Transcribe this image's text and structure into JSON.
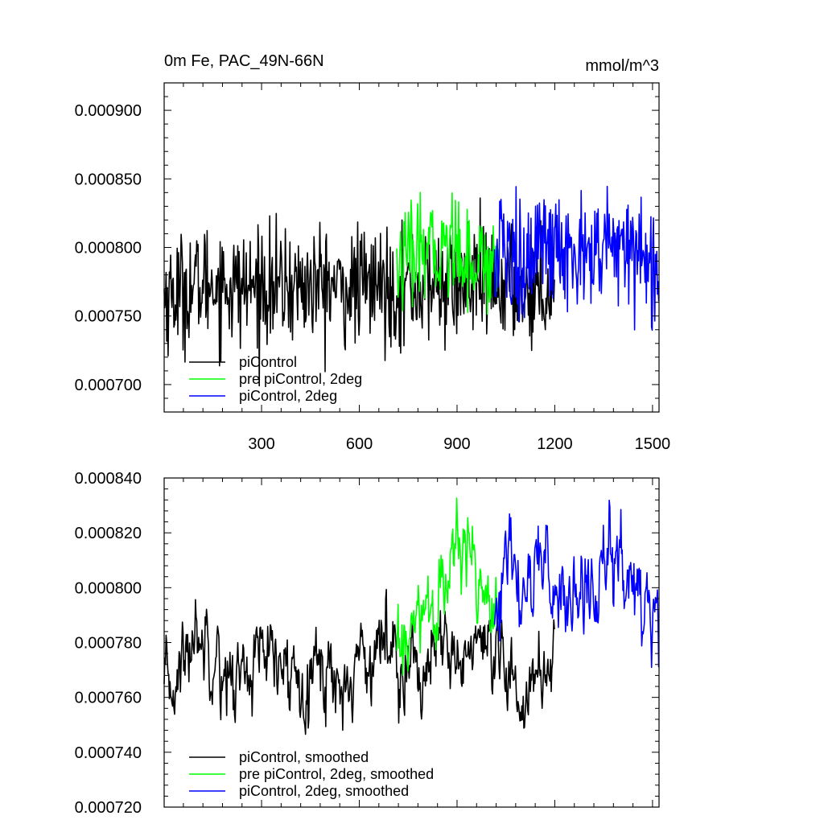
{
  "figure": {
    "title_left": "0m Fe, PAC_49N-66N",
    "title_right": "mmol/m^3"
  },
  "chart_data": [
    {
      "type": "line",
      "title": "0m Fe, PAC_49N-66N",
      "units": "mmol/m^3",
      "xlabel": "",
      "ylabel": "",
      "xlim": [
        1,
        1520
      ],
      "ylim": [
        0.00068,
        0.00092
      ],
      "xticks": [
        300,
        600,
        900,
        1200,
        1500
      ],
      "xtick_labels": [
        "300",
        "600",
        "900",
        "1200",
        "1500"
      ],
      "yticks": [
        0.0007,
        0.00075,
        0.0008,
        0.00085,
        0.0009
      ],
      "ytick_labels": [
        "0.000700",
        "0.000750",
        "0.000800",
        "0.000850",
        "0.000900"
      ],
      "grid": false,
      "legend_position": "bottom-left",
      "series": [
        {
          "name": "piControl",
          "color": "#000000",
          "x": [
            1,
            50,
            100,
            150,
            200,
            250,
            300,
            350,
            400,
            450,
            500,
            550,
            600,
            650,
            700,
            750,
            800,
            850,
            900,
            950,
            1000,
            1050,
            1100,
            1150,
            1200
          ],
          "y": [
            0.000765,
            0.000768,
            0.000772,
            0.000775,
            0.000772,
            0.00077,
            0.000773,
            0.00077,
            0.000772,
            0.000771,
            0.000774,
            0.000768,
            0.000772,
            0.000773,
            0.00077,
            0.000772,
            0.00077,
            0.000774,
            0.000771,
            0.000776,
            0.00077,
            0.000774,
            0.000768,
            0.000771,
            0.000773
          ]
        },
        {
          "name": "pre piControl, 2deg",
          "color": "#00ff00",
          "x": [
            715,
            750,
            800,
            850,
            900,
            950,
            1000,
            1030
          ],
          "y": [
            0.000785,
            0.000792,
            0.000795,
            0.0008,
            0.000802,
            0.00079,
            0.000788,
            0.000795
          ]
        },
        {
          "name": "piControl, 2deg",
          "color": "#0000ff",
          "x": [
            1015,
            1050,
            1100,
            1150,
            1200,
            1250,
            1300,
            1350,
            1400,
            1450,
            1500,
            1520
          ],
          "y": [
            0.00079,
            0.000795,
            0.000792,
            0.000798,
            0.000794,
            0.000796,
            0.000793,
            0.000797,
            0.0008,
            0.000795,
            0.00079,
            0.000785
          ]
        }
      ]
    },
    {
      "type": "line",
      "title": "",
      "xlabel": "",
      "ylabel": "",
      "xlim": [
        1,
        1520
      ],
      "ylim": [
        0.00072,
        0.00084
      ],
      "xticks": [
        300,
        600,
        900,
        1200,
        1500
      ],
      "yticks": [
        0.00072,
        0.00074,
        0.00076,
        0.00078,
        0.0008,
        0.00082,
        0.00084
      ],
      "ytick_labels": [
        "0.000720",
        "0.000740",
        "0.000760",
        "0.000780",
        "0.000800",
        "0.000820",
        "0.000840"
      ],
      "grid": false,
      "legend_position": "bottom-left",
      "series": [
        {
          "name": "piControl, smoothed",
          "color": "#000000",
          "x": [
            1,
            50,
            100,
            150,
            200,
            250,
            300,
            350,
            400,
            450,
            500,
            550,
            600,
            650,
            700,
            750,
            800,
            850,
            900,
            950,
            1000,
            1050,
            1100,
            1150,
            1200
          ],
          "y": [
            0.00076,
            0.00077,
            0.000785,
            0.00078,
            0.000765,
            0.00077,
            0.000775,
            0.00077,
            0.000768,
            0.000772,
            0.00077,
            0.000762,
            0.000775,
            0.000778,
            0.00078,
            0.000772,
            0.00077,
            0.000776,
            0.000772,
            0.00078,
            0.00077,
            0.000768,
            0.00076,
            0.000768,
            0.000778
          ]
        },
        {
          "name": "pre piControl, 2deg, smoothed",
          "color": "#00ff00",
          "x": [
            715,
            750,
            800,
            850,
            900,
            950,
            1000,
            1030
          ],
          "y": [
            0.000775,
            0.00078,
            0.00079,
            0.000795,
            0.000815,
            0.00081,
            0.0008,
            0.000795
          ]
        },
        {
          "name": "piControl, 2deg, smoothed",
          "color": "#0000ff",
          "x": [
            1015,
            1050,
            1100,
            1150,
            1200,
            1250,
            1300,
            1350,
            1400,
            1450,
            1500,
            1520
          ],
          "y": [
            0.00079,
            0.000805,
            0.0008,
            0.00081,
            0.000795,
            0.0008,
            0.000795,
            0.000805,
            0.00081,
            0.0008,
            0.00079,
            0.00078
          ]
        }
      ]
    }
  ]
}
